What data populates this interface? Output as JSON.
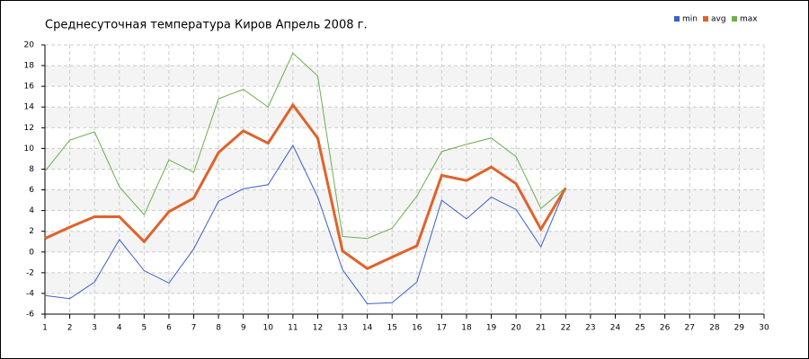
{
  "chart_data": {
    "type": "line",
    "title": "Среднесуточная температура Киров  Апрель 2008 г.",
    "x": [
      1,
      2,
      3,
      4,
      5,
      6,
      7,
      8,
      9,
      10,
      11,
      12,
      13,
      14,
      15,
      16,
      17,
      18,
      19,
      20,
      21,
      22
    ],
    "series": [
      {
        "name": "min",
        "color": "#3a5fcd",
        "width": 1,
        "values": [
          -4.2,
          -4.5,
          -2.9,
          1.2,
          -1.8,
          -3.0,
          0.3,
          4.9,
          6.1,
          6.5,
          10.3,
          5.3,
          -1.7,
          -5.0,
          -4.9,
          -2.9,
          5.0,
          3.2,
          5.3,
          4.1,
          0.5,
          6.2
        ]
      },
      {
        "name": "avg",
        "color": "#e0622a",
        "width": 3,
        "values": [
          1.3,
          2.4,
          3.4,
          3.4,
          1.0,
          3.9,
          5.2,
          9.6,
          11.7,
          10.5,
          14.2,
          11.0,
          0.1,
          -1.6,
          -0.5,
          0.6,
          7.4,
          6.9,
          8.2,
          6.6,
          2.2,
          6.2
        ]
      },
      {
        "name": "max",
        "color": "#6ab04c",
        "width": 1,
        "values": [
          7.8,
          10.8,
          11.6,
          6.3,
          3.6,
          8.9,
          7.7,
          14.8,
          15.7,
          14.0,
          19.2,
          17.0,
          1.5,
          1.3,
          2.3,
          5.4,
          9.7,
          10.4,
          11.0,
          9.2,
          4.2,
          6.2
        ]
      }
    ],
    "xlim": [
      1,
      30
    ],
    "xticks": [
      1,
      2,
      3,
      4,
      5,
      6,
      7,
      8,
      9,
      10,
      11,
      12,
      13,
      14,
      15,
      16,
      17,
      18,
      19,
      20,
      21,
      22,
      23,
      24,
      25,
      26,
      27,
      28,
      29,
      30
    ],
    "ylim": [
      -6,
      20
    ],
    "yticks": [
      -6,
      -4,
      -2,
      0,
      2,
      4,
      6,
      8,
      10,
      12,
      14,
      16,
      18,
      20
    ],
    "grid": true,
    "legend": "top-right"
  }
}
